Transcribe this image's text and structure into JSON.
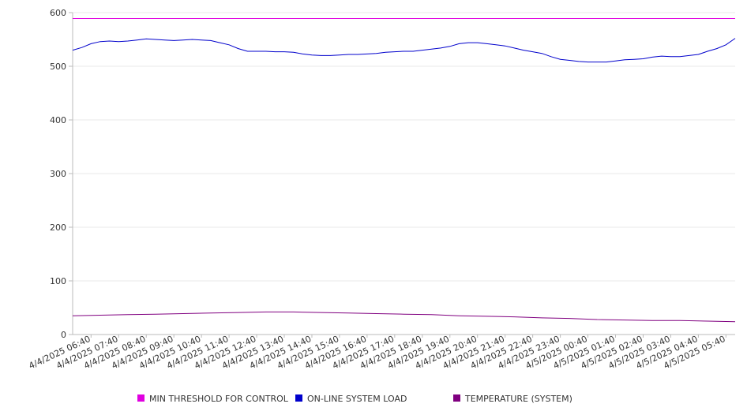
{
  "chart_data": {
    "type": "line",
    "y_ticks": [
      0,
      100,
      200,
      300,
      400,
      500,
      600
    ],
    "ylim": [
      0,
      600
    ],
    "x_start": "4/4/2025 06:00",
    "x_end": "4/5/2025 06:00",
    "x_tick_labels": [
      "4/4/2025 06:40",
      "4/4/2025 07:40",
      "4/4/2025 08:40",
      "4/4/2025 09:40",
      "4/4/2025 10:40",
      "4/4/2025 11:40",
      "4/4/2025 12:40",
      "4/4/2025 13:40",
      "4/4/2025 14:40",
      "4/4/2025 15:40",
      "4/4/2025 16:40",
      "4/4/2025 17:40",
      "4/4/2025 18:40",
      "4/4/2025 19:40",
      "4/4/2025 20:40",
      "4/4/2025 21:40",
      "4/4/2025 22:40",
      "4/4/2025 23:40",
      "4/5/2025 00:40",
      "4/5/2025 01:40",
      "4/5/2025 02:40",
      "4/5/2025 03:40",
      "4/5/2025 04:40",
      "4/5/2025 05:40"
    ],
    "grid": true,
    "legend_position": "bottom",
    "series": [
      {
        "name": "MIN THRESHOLD FOR CONTROL",
        "color": "#e000e0",
        "points": [
          [
            "4/4/2025 06:00",
            589
          ],
          [
            "4/5/2025 06:00",
            589
          ]
        ]
      },
      {
        "name": "ON-LINE SYSTEM LOAD",
        "color": "#0000cc",
        "points": [
          [
            "4/4/2025 06:00",
            530
          ],
          [
            "4/4/2025 06:20",
            535
          ],
          [
            "4/4/2025 06:40",
            542
          ],
          [
            "4/4/2025 07:00",
            546
          ],
          [
            "4/4/2025 07:20",
            547
          ],
          [
            "4/4/2025 07:40",
            546
          ],
          [
            "4/4/2025 08:00",
            547
          ],
          [
            "4/4/2025 08:20",
            549
          ],
          [
            "4/4/2025 08:40",
            551
          ],
          [
            "4/4/2025 09:00",
            550
          ],
          [
            "4/4/2025 09:20",
            549
          ],
          [
            "4/4/2025 09:40",
            548
          ],
          [
            "4/4/2025 10:00",
            549
          ],
          [
            "4/4/2025 10:20",
            550
          ],
          [
            "4/4/2025 10:40",
            549
          ],
          [
            "4/4/2025 11:00",
            548
          ],
          [
            "4/4/2025 11:20",
            544
          ],
          [
            "4/4/2025 11:40",
            540
          ],
          [
            "4/4/2025 12:00",
            533
          ],
          [
            "4/4/2025 12:20",
            528
          ],
          [
            "4/4/2025 12:40",
            528
          ],
          [
            "4/4/2025 13:00",
            528
          ],
          [
            "4/4/2025 13:20",
            527
          ],
          [
            "4/4/2025 13:40",
            527
          ],
          [
            "4/4/2025 14:00",
            526
          ],
          [
            "4/4/2025 14:20",
            523
          ],
          [
            "4/4/2025 14:40",
            521
          ],
          [
            "4/4/2025 15:00",
            520
          ],
          [
            "4/4/2025 15:20",
            520
          ],
          [
            "4/4/2025 15:40",
            521
          ],
          [
            "4/4/2025 16:00",
            522
          ],
          [
            "4/4/2025 16:20",
            522
          ],
          [
            "4/4/2025 16:40",
            523
          ],
          [
            "4/4/2025 17:00",
            524
          ],
          [
            "4/4/2025 17:20",
            526
          ],
          [
            "4/4/2025 17:40",
            527
          ],
          [
            "4/4/2025 18:00",
            528
          ],
          [
            "4/4/2025 18:20",
            528
          ],
          [
            "4/4/2025 18:40",
            530
          ],
          [
            "4/4/2025 19:00",
            532
          ],
          [
            "4/4/2025 19:20",
            534
          ],
          [
            "4/4/2025 19:40",
            537
          ],
          [
            "4/4/2025 20:00",
            542
          ],
          [
            "4/4/2025 20:20",
            544
          ],
          [
            "4/4/2025 20:40",
            544
          ],
          [
            "4/4/2025 21:00",
            542
          ],
          [
            "4/4/2025 21:20",
            540
          ],
          [
            "4/4/2025 21:40",
            538
          ],
          [
            "4/4/2025 22:00",
            534
          ],
          [
            "4/4/2025 22:20",
            530
          ],
          [
            "4/4/2025 22:40",
            527
          ],
          [
            "4/4/2025 23:00",
            524
          ],
          [
            "4/4/2025 23:20",
            518
          ],
          [
            "4/4/2025 23:40",
            513
          ],
          [
            "4/5/2025 00:00",
            511
          ],
          [
            "4/5/2025 00:20",
            509
          ],
          [
            "4/5/2025 00:40",
            508
          ],
          [
            "4/5/2025 01:00",
            508
          ],
          [
            "4/5/2025 01:20",
            508
          ],
          [
            "4/5/2025 01:40",
            510
          ],
          [
            "4/5/2025 02:00",
            512
          ],
          [
            "4/5/2025 02:20",
            513
          ],
          [
            "4/5/2025 02:40",
            514
          ],
          [
            "4/5/2025 03:00",
            517
          ],
          [
            "4/5/2025 03:20",
            519
          ],
          [
            "4/5/2025 03:40",
            518
          ],
          [
            "4/5/2025 04:00",
            518
          ],
          [
            "4/5/2025 04:20",
            520
          ],
          [
            "4/5/2025 04:40",
            522
          ],
          [
            "4/5/2025 05:00",
            528
          ],
          [
            "4/5/2025 05:20",
            533
          ],
          [
            "4/5/2025 05:40",
            540
          ],
          [
            "4/5/2025 06:00",
            552
          ]
        ]
      },
      {
        "name": "TEMPERATURE (SYSTEM)",
        "color": "#800080",
        "points": [
          [
            "4/4/2025 06:00",
            35
          ],
          [
            "4/4/2025 07:00",
            36
          ],
          [
            "4/4/2025 08:00",
            37
          ],
          [
            "4/4/2025 09:00",
            38
          ],
          [
            "4/4/2025 10:00",
            39
          ],
          [
            "4/4/2025 11:00",
            40
          ],
          [
            "4/4/2025 12:00",
            41
          ],
          [
            "4/4/2025 13:00",
            42
          ],
          [
            "4/4/2025 14:00",
            42
          ],
          [
            "4/4/2025 15:00",
            41
          ],
          [
            "4/4/2025 16:00",
            40
          ],
          [
            "4/4/2025 17:00",
            39
          ],
          [
            "4/4/2025 18:00",
            38
          ],
          [
            "4/4/2025 19:00",
            37
          ],
          [
            "4/4/2025 20:00",
            35
          ],
          [
            "4/4/2025 21:00",
            34
          ],
          [
            "4/4/2025 22:00",
            33
          ],
          [
            "4/4/2025 23:00",
            31
          ],
          [
            "4/5/2025 00:00",
            30
          ],
          [
            "4/5/2025 01:00",
            28
          ],
          [
            "4/5/2025 02:00",
            27
          ],
          [
            "4/5/2025 03:00",
            26
          ],
          [
            "4/5/2025 04:00",
            26
          ],
          [
            "4/5/2025 05:00",
            25
          ],
          [
            "4/5/2025 06:00",
            24
          ]
        ]
      }
    ]
  }
}
